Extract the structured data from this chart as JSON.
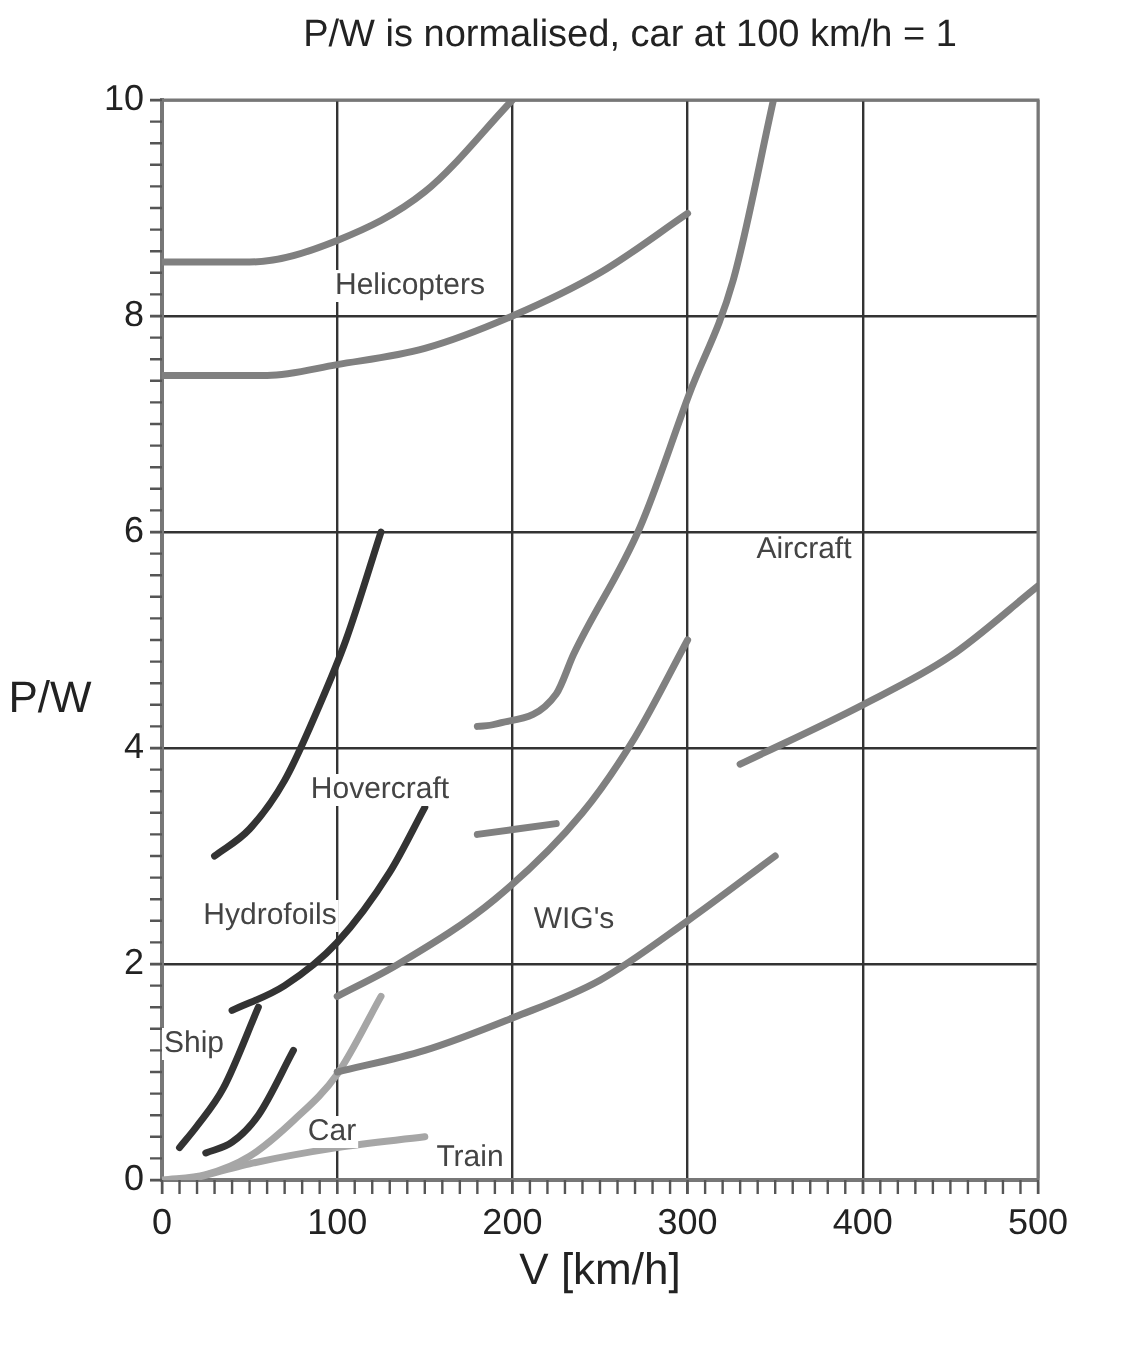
{
  "chart_data": {
    "type": "line",
    "title": "P/W is normalised, car at 100 km/h = 1",
    "xlabel": "V [km/h]",
    "ylabel": "P/W",
    "xlim": [
      0,
      500
    ],
    "ylim": [
      0,
      10
    ],
    "xticks": [
      0,
      {
        "value": 10,
        "label": null
      },
      {
        "value": 20,
        "label": null
      },
      {
        "value": 30,
        "label": null
      },
      {
        "value": 40,
        "label": null
      },
      {
        "value": 50,
        "label": null
      },
      {
        "value": 60,
        "label": null
      },
      {
        "value": 70,
        "label": null
      },
      {
        "value": 80,
        "label": null
      },
      {
        "value": 90,
        "label": null
      },
      100,
      {
        "value": 110,
        "label": null
      },
      {
        "value": 120,
        "label": null
      },
      {
        "value": 130,
        "label": null
      },
      {
        "value": 140,
        "label": null
      },
      {
        "value": 150,
        "label": null
      },
      {
        "value": 160,
        "label": null
      },
      {
        "value": 170,
        "label": null
      },
      {
        "value": 180,
        "label": null
      },
      {
        "value": 190,
        "label": null
      },
      200,
      {
        "value": 210,
        "label": null
      },
      {
        "value": 220,
        "label": null
      },
      {
        "value": 230,
        "label": null
      },
      {
        "value": 240,
        "label": null
      },
      {
        "value": 250,
        "label": null
      },
      {
        "value": 260,
        "label": null
      },
      {
        "value": 270,
        "label": null
      },
      {
        "value": 280,
        "label": null
      },
      {
        "value": 290,
        "label": null
      },
      300,
      {
        "value": 310,
        "label": null
      },
      {
        "value": 320,
        "label": null
      },
      {
        "value": 330,
        "label": null
      },
      {
        "value": 340,
        "label": null
      },
      {
        "value": 350,
        "label": null
      },
      {
        "value": 360,
        "label": null
      },
      {
        "value": 370,
        "label": null
      },
      {
        "value": 380,
        "label": null
      },
      {
        "value": 390,
        "label": null
      },
      400,
      {
        "value": 410,
        "label": null
      },
      {
        "value": 420,
        "label": null
      },
      {
        "value": 430,
        "label": null
      },
      {
        "value": 440,
        "label": null
      },
      {
        "value": 450,
        "label": null
      },
      {
        "value": 460,
        "label": null
      },
      {
        "value": 470,
        "label": null
      },
      {
        "value": 480,
        "label": null
      },
      {
        "value": 490,
        "label": null
      },
      500
    ],
    "yticks": [
      0,
      {
        "value": 0.2,
        "label": null
      },
      {
        "value": 0.4,
        "label": null
      },
      {
        "value": 0.6,
        "label": null
      },
      {
        "value": 0.8,
        "label": null
      },
      {
        "value": 1,
        "label": null
      },
      {
        "value": 1.2,
        "label": null
      },
      {
        "value": 1.4,
        "label": null
      },
      {
        "value": 1.6,
        "label": null
      },
      {
        "value": 1.8,
        "label": null
      },
      2,
      {
        "value": 2.2,
        "label": null
      },
      {
        "value": 2.4,
        "label": null
      },
      {
        "value": 2.6,
        "label": null
      },
      {
        "value": 2.8,
        "label": null
      },
      {
        "value": 3,
        "label": null
      },
      {
        "value": 3.2,
        "label": null
      },
      {
        "value": 3.4,
        "label": null
      },
      {
        "value": 3.6,
        "label": null
      },
      {
        "value": 3.8,
        "label": null
      },
      4,
      {
        "value": 4.2,
        "label": null
      },
      {
        "value": 4.4,
        "label": null
      },
      {
        "value": 4.6,
        "label": null
      },
      {
        "value": 4.8,
        "label": null
      },
      {
        "value": 5,
        "label": null
      },
      {
        "value": 5.2,
        "label": null
      },
      {
        "value": 5.4,
        "label": null
      },
      {
        "value": 5.6,
        "label": null
      },
      {
        "value": 5.8,
        "label": null
      },
      6,
      {
        "value": 6.2,
        "label": null
      },
      {
        "value": 6.4,
        "label": null
      },
      {
        "value": 6.6,
        "label": null
      },
      {
        "value": 6.8,
        "label": null
      },
      {
        "value": 7,
        "label": null
      },
      {
        "value": 7.2,
        "label": null
      },
      {
        "value": 7.4,
        "label": null
      },
      {
        "value": 7.6,
        "label": null
      },
      {
        "value": 7.8,
        "label": null
      },
      8,
      {
        "value": 8.2,
        "label": null
      },
      {
        "value": 8.4,
        "label": null
      },
      {
        "value": 8.6,
        "label": null
      },
      {
        "value": 8.8,
        "label": null
      },
      {
        "value": 9,
        "label": null
      },
      {
        "value": 9.2,
        "label": null
      },
      {
        "value": 9.4,
        "label": null
      },
      {
        "value": 9.6,
        "label": null
      },
      {
        "value": 9.8,
        "label": null
      },
      10
    ],
    "grid": true,
    "legend": false,
    "marker": "none",
    "line_style": "solid",
    "series": [
      {
        "color": "#808080",
        "x": [
          0,
          50,
          100,
          150,
          200
        ],
        "values": [
          8.5,
          8.5,
          8.7,
          9.15,
          10
        ]
      },
      {
        "color": "#808080",
        "x": [
          0,
          60,
          100,
          150,
          200,
          250,
          300
        ],
        "values": [
          7.45,
          7.45,
          7.55,
          7.7,
          8.0,
          8.4,
          8.95
        ]
      },
      {
        "color": "#808080",
        "x": [
          180,
          190,
          225,
          235,
          273,
          301,
          326,
          349
        ],
        "values": [
          4.2,
          4.22,
          4.5,
          4.87,
          6.05,
          7.28,
          8.33,
          10
        ]
      },
      {
        "color": "#808080",
        "x": [
          330,
          400,
          450,
          500
        ],
        "values": [
          3.85,
          4.4,
          4.85,
          5.5
        ]
      },
      {
        "color": "#808080",
        "x": [
          100,
          135,
          190,
          240,
          270,
          300
        ],
        "values": [
          1.7,
          2.0,
          2.6,
          3.4,
          4.1,
          5.0
        ]
      },
      {
        "color": "#808080",
        "x": [
          180,
          225
        ],
        "values": [
          3.2,
          3.3
        ]
      },
      {
        "color": "#808080",
        "x": [
          100,
          150,
          200,
          250,
          300,
          350
        ],
        "values": [
          1.0,
          1.2,
          1.5,
          1.85,
          2.4,
          3.0
        ]
      },
      {
        "color": "#333333",
        "x": [
          30,
          50,
          70,
          90,
          105,
          125
        ],
        "values": [
          3.0,
          3.25,
          3.7,
          4.4,
          5.0,
          6.0
        ]
      },
      {
        "color": "#333333",
        "x": [
          40,
          70,
          100,
          130,
          150
        ],
        "values": [
          1.57,
          1.8,
          2.2,
          2.85,
          3.45
        ]
      },
      {
        "color": "#333333",
        "x": [
          10,
          20,
          35,
          55
        ],
        "values": [
          0.3,
          0.5,
          0.85,
          1.6
        ]
      },
      {
        "color": "#333333",
        "x": [
          25,
          40,
          55,
          75
        ],
        "values": [
          0.25,
          0.35,
          0.6,
          1.2
        ]
      },
      {
        "color": "#a6a6a6",
        "x": [
          0,
          25,
          50,
          75,
          100,
          125
        ],
        "values": [
          0,
          0.05,
          0.22,
          0.55,
          0.98,
          1.7
        ]
      },
      {
        "color": "#a6a6a6",
        "x": [
          15,
          50,
          100,
          150
        ],
        "values": [
          0,
          0.15,
          0.3,
          0.4
        ]
      }
    ],
    "annotations": [
      "Helicopters",
      "Aircraft",
      "Hovercraft",
      "Hydrofoils",
      "WIG's",
      "Ship",
      "Car",
      "Train"
    ]
  }
}
